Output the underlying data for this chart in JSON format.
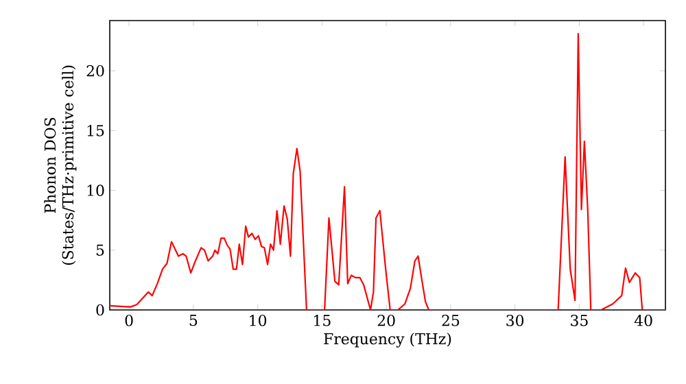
{
  "chart_data": {
    "type": "line",
    "xlabel": "Frequency (THz)",
    "ylabel": "Phonon DOS (States/THz·primitive cell)",
    "xlim": [
      -1.5,
      41.7
    ],
    "ylim": [
      0,
      24.2
    ],
    "xticks": [
      0,
      5,
      10,
      15,
      20,
      25,
      30,
      35,
      40
    ],
    "yticks": [
      0,
      5,
      10,
      15,
      20
    ],
    "grid": false,
    "legend": false,
    "marker": "none",
    "line_style": "solid",
    "series": [
      {
        "color": "#ff0000",
        "x": [
          -1.5,
          0.1,
          0.6,
          1.5,
          1.8,
          2.2,
          2.6,
          2.95,
          3.3,
          3.84,
          4.2,
          4.44,
          4.8,
          5.16,
          5.6,
          5.87,
          6.15,
          6.5,
          6.68,
          6.9,
          7.15,
          7.4,
          7.64,
          7.85,
          8.1,
          8.35,
          8.57,
          8.82,
          9.07,
          9.28,
          9.56,
          9.8,
          10.06,
          10.3,
          10.52,
          10.77,
          11.0,
          11.23,
          11.5,
          11.76,
          12.05,
          12.3,
          12.55,
          12.77,
          13.05,
          13.3,
          13.8,
          15.2,
          15.54,
          16.0,
          16.3,
          16.75,
          17.0,
          17.28,
          17.6,
          17.95,
          18.24,
          18.77,
          19.0,
          19.2,
          19.5,
          19.95,
          20.3,
          20.9,
          21.44,
          21.87,
          22.22,
          22.47,
          22.75,
          23.04,
          23.3,
          33.36,
          33.9,
          34.3,
          34.67,
          34.92,
          35.17,
          35.4,
          35.66,
          35.9,
          36.7,
          37.6,
          38.3,
          38.6,
          38.9,
          39.36,
          39.7,
          39.9,
          41.7
        ],
        "values": [
          0.35,
          0.25,
          0.45,
          1.5,
          1.2,
          2.2,
          3.4,
          3.9,
          5.7,
          4.5,
          4.7,
          4.5,
          3.1,
          4.1,
          5.2,
          5.0,
          4.1,
          4.5,
          5.0,
          4.7,
          6.0,
          6.0,
          5.4,
          5.1,
          3.4,
          3.4,
          5.5,
          3.8,
          7.0,
          6.1,
          6.4,
          5.9,
          6.2,
          5.3,
          5.2,
          3.8,
          5.5,
          5.0,
          8.3,
          5.5,
          8.7,
          7.6,
          4.5,
          11.4,
          13.5,
          11.6,
          0,
          0,
          7.7,
          2.4,
          2.1,
          10.3,
          2.2,
          2.9,
          2.7,
          2.7,
          2.1,
          0,
          1.5,
          7.7,
          8.3,
          3.4,
          0,
          0,
          0.5,
          1.8,
          4.1,
          4.5,
          2.6,
          0.7,
          0,
          0,
          12.8,
          3.4,
          0.8,
          23.1,
          8.4,
          14.1,
          8.4,
          0,
          0,
          0.5,
          1.2,
          3.5,
          2.3,
          3.1,
          2.7,
          0,
          0
        ]
      }
    ]
  }
}
